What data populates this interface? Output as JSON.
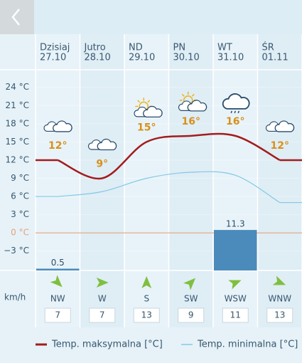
{
  "chart_data": {
    "type": "weather",
    "days": [
      {
        "name": "Dzisiaj",
        "date": "27.10"
      },
      {
        "name": "Jutro",
        "date": "28.10"
      },
      {
        "name": "ND",
        "date": "29.10"
      },
      {
        "name": "PN",
        "date": "30.10"
      },
      {
        "name": "WT",
        "date": "31.10"
      },
      {
        "name": "ŚR",
        "date": "01.11"
      }
    ],
    "ylim": [
      -6.2,
      26.9
    ],
    "yticks": [
      {
        "value": 24,
        "label": "24 °C"
      },
      {
        "value": 21,
        "label": "21 °C"
      },
      {
        "value": 18,
        "label": "18 °C"
      },
      {
        "value": 15,
        "label": "15 °C"
      },
      {
        "value": 12,
        "label": "12 °C"
      },
      {
        "value": 9,
        "label": "9 °C"
      },
      {
        "value": 6,
        "label": "6 °C"
      },
      {
        "value": 3,
        "label": "3 °C"
      },
      {
        "value": 0,
        "label": "0 °C"
      },
      {
        "value": -3,
        "label": "−3 °C"
      }
    ],
    "reference_lines": [
      {
        "value": 0,
        "color": "#e6a27a"
      }
    ],
    "series": [
      {
        "name": "Temp. maksymalna [°C]",
        "color": "#a31c1c",
        "values": [
          12,
          9,
          15,
          16,
          16,
          12
        ],
        "value_labels": [
          "12°",
          "9°",
          "15°",
          "16°",
          "16°",
          "12°"
        ]
      },
      {
        "name": "Temp. minimalna [°C]",
        "color": "#82c9e6",
        "values": [
          6,
          6.8,
          9,
          10,
          9.5,
          5
        ]
      }
    ],
    "precipitation": {
      "color": "#4a8bbb",
      "values": [
        0.5,
        null,
        null,
        null,
        11.3,
        null
      ],
      "y2lim": [
        0,
        56
      ]
    },
    "wind": {
      "unit": "km/h",
      "directions": [
        "NW",
        "W",
        "S",
        "SW",
        "WSW",
        "WNW"
      ],
      "speeds": [
        7,
        7,
        13,
        9,
        11,
        13
      ]
    }
  }
}
